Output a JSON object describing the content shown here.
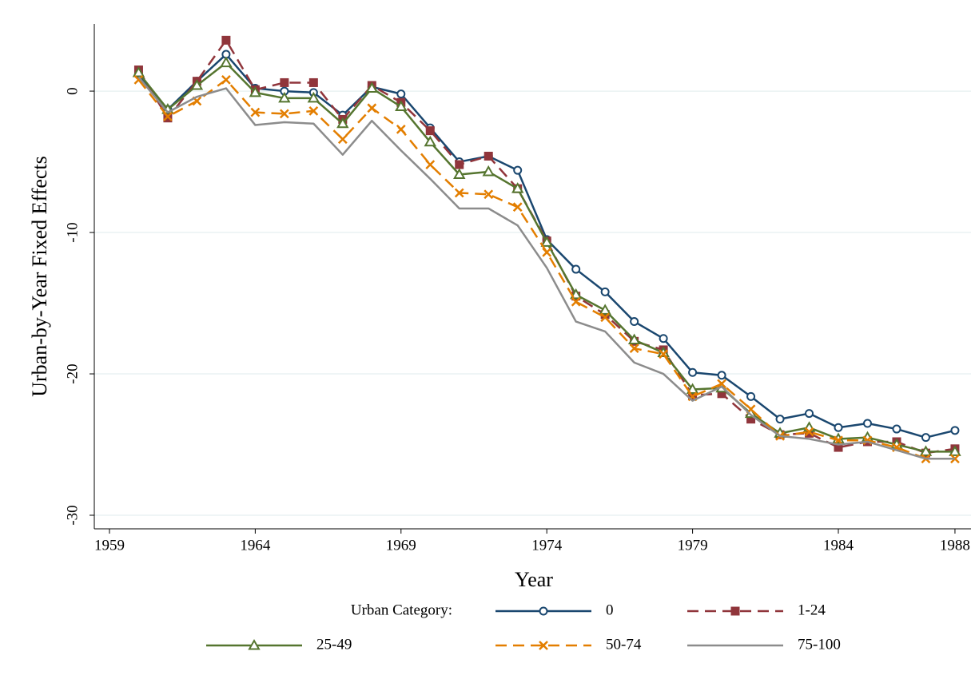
{
  "chart_data": {
    "type": "line",
    "x_label": "Year",
    "y_label": "Urban-by-Year Fixed Effects",
    "x": [
      1960,
      1961,
      1962,
      1963,
      1964,
      1965,
      1966,
      1967,
      1968,
      1969,
      1970,
      1971,
      1972,
      1973,
      1974,
      1975,
      1976,
      1977,
      1978,
      1979,
      1980,
      1981,
      1982,
      1983,
      1984,
      1985,
      1986,
      1987,
      1988
    ],
    "series": [
      {
        "name": "0",
        "color": "#1a476f",
        "dash": "solid",
        "marker": "circle",
        "values": [
          1.2,
          -1.3,
          0.7,
          2.6,
          0.2,
          0,
          -0.1,
          -1.7,
          0.3,
          -0.2,
          -2.6,
          -5.0,
          -4.6,
          -5.6,
          -10.5,
          -12.6,
          -14.2,
          -16.3,
          -17.5,
          -19.9,
          -20.1,
          -21.6,
          -23.2,
          -22.8,
          -23.8,
          -23.5,
          -23.9,
          -24.5,
          -24.0
        ]
      },
      {
        "name": "1-24",
        "color": "#90353b",
        "dash": "dashed",
        "marker": "square",
        "values": [
          1.5,
          -1.9,
          0.7,
          3.6,
          0.1,
          0.6,
          0.6,
          -2.0,
          0.4,
          -0.8,
          -2.8,
          -5.2,
          -4.6,
          -6.9,
          -10.6,
          -14.5,
          -15.8,
          -17.7,
          -18.3,
          -21.5,
          -21.4,
          -23.2,
          -24.3,
          -24.2,
          -25.2,
          -24.8,
          -24.8,
          -25.6,
          -25.3
        ]
      },
      {
        "name": "25-49",
        "color": "#55752f",
        "dash": "solid",
        "marker": "triangle",
        "values": [
          1.3,
          -1.3,
          0.4,
          2.0,
          -0.1,
          -0.5,
          -0.5,
          -2.3,
          0.2,
          -1.1,
          -3.6,
          -5.9,
          -5.7,
          -6.9,
          -10.7,
          -14.4,
          -15.5,
          -17.6,
          -18.5,
          -21.1,
          -21.0,
          -22.8,
          -24.2,
          -23.8,
          -24.6,
          -24.5,
          -25.0,
          -25.5,
          -25.5
        ]
      },
      {
        "name": "50-74",
        "color": "#e37e00",
        "dash": "dashed",
        "marker": "x",
        "values": [
          0.8,
          -1.8,
          -0.7,
          0.8,
          -1.5,
          -1.6,
          -1.4,
          -3.4,
          -1.2,
          -2.7,
          -5.2,
          -7.2,
          -7.3,
          -8.2,
          -11.4,
          -14.9,
          -16.0,
          -18.2,
          -18.6,
          -21.6,
          -20.7,
          -22.5,
          -24.4,
          -24.1,
          -24.7,
          -24.7,
          -25.2,
          -26.0,
          -26.0
        ]
      },
      {
        "name": "75-100",
        "color": "#8c8c8c",
        "dash": "solid",
        "values": [
          1.0,
          -1.5,
          -0.4,
          0.2,
          -2.4,
          -2.2,
          -2.3,
          -4.5,
          -2.1,
          -4.2,
          -6.2,
          -8.3,
          -8.3,
          -9.5,
          -12.5,
          -16.3,
          -17.0,
          -19.2,
          -20.0,
          -21.9,
          -20.9,
          -22.9,
          -24.4,
          -24.6,
          -25.0,
          -24.8,
          -25.4,
          -26.0,
          -26.0
        ]
      }
    ],
    "legend_title": "Urban Category:",
    "xlim": [
      1958.48,
      1988.55
    ],
    "xticks": [
      1959,
      1964,
      1969,
      1974,
      1979,
      1984,
      1988
    ],
    "ylim": [
      -30.96,
      4.75
    ],
    "yticks": [
      -30,
      -20,
      -10,
      0
    ],
    "grid": true,
    "legend_position": "bottom"
  }
}
